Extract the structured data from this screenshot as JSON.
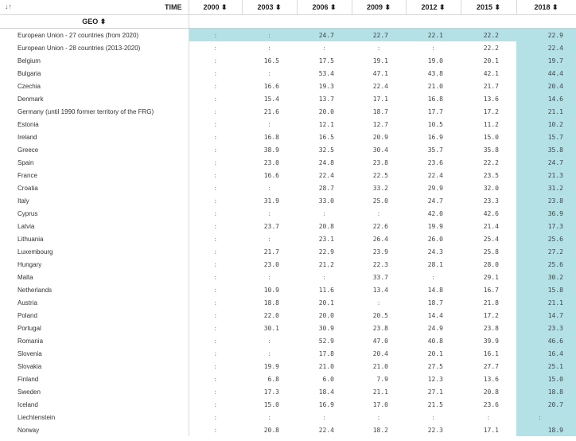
{
  "header": {
    "sort_icon": "↓↑",
    "time_label": "TIME",
    "geo_label": "GEO",
    "sort_arrows": "⬍",
    "years": [
      "2000",
      "2003",
      "2006",
      "2009",
      "2012",
      "2015",
      "2018"
    ]
  },
  "highlight_color": "#b3e1e6",
  "rows": [
    {
      "geo": "European Union - 27 countries (from 2020)",
      "values": [
        ":",
        ":",
        "24.7",
        "22.7",
        "22.1",
        "22.2",
        "22.9"
      ],
      "hl": true
    },
    {
      "geo": "European Union - 28 countries (2013-2020)",
      "values": [
        ":",
        ":",
        ":",
        ":",
        ":",
        "22.2",
        "22.4"
      ]
    },
    {
      "geo": "Belgium",
      "values": [
        ":",
        "16.5",
        "17.5",
        "19.1",
        "19.0",
        "20.1",
        "19.7"
      ]
    },
    {
      "geo": "Bulgaria",
      "values": [
        ":",
        ":",
        "53.4",
        "47.1",
        "43.8",
        "42.1",
        "44.4"
      ]
    },
    {
      "geo": "Czechia",
      "values": [
        ":",
        "16.6",
        "19.3",
        "22.4",
        "21.0",
        "21.7",
        "20.4"
      ]
    },
    {
      "geo": "Denmark",
      "values": [
        ":",
        "15.4",
        "13.7",
        "17.1",
        "16.8",
        "13.6",
        "14.6"
      ]
    },
    {
      "geo": "Germany (until 1990 former territory of the FRG)",
      "values": [
        ":",
        "21.6",
        "20.0",
        "18.7",
        "17.7",
        "17.2",
        "21.1"
      ]
    },
    {
      "geo": "Estonia",
      "values": [
        ":",
        ":",
        "12.1",
        "12.7",
        "10.5",
        "11.2",
        "10.2"
      ]
    },
    {
      "geo": "Ireland",
      "values": [
        ":",
        "16.8",
        "16.5",
        "20.9",
        "16.9",
        "15.0",
        "15.7"
      ]
    },
    {
      "geo": "Greece",
      "values": [
        ":",
        "38.9",
        "32.5",
        "30.4",
        "35.7",
        "35.8",
        "35.8"
      ]
    },
    {
      "geo": "Spain",
      "values": [
        ":",
        "23.0",
        "24.8",
        "23.8",
        "23.6",
        "22.2",
        "24.7"
      ]
    },
    {
      "geo": "France",
      "values": [
        ":",
        "16.6",
        "22.4",
        "22.5",
        "22.4",
        "23.5",
        "21.3"
      ]
    },
    {
      "geo": "Croatia",
      "values": [
        ":",
        ":",
        "28.7",
        "33.2",
        "29.9",
        "32.0",
        "31.2"
      ]
    },
    {
      "geo": "Italy",
      "values": [
        ":",
        "31.9",
        "33.0",
        "25.0",
        "24.7",
        "23.3",
        "23.8"
      ]
    },
    {
      "geo": "Cyprus",
      "values": [
        ":",
        ":",
        ":",
        ":",
        "42.0",
        "42.6",
        "36.9"
      ]
    },
    {
      "geo": "Latvia",
      "values": [
        ":",
        "23.7",
        "20.8",
        "22.6",
        "19.9",
        "21.4",
        "17.3"
      ]
    },
    {
      "geo": "Lithuania",
      "values": [
        ":",
        ":",
        "23.1",
        "26.4",
        "26.0",
        "25.4",
        "25.6"
      ]
    },
    {
      "geo": "Luxembourg",
      "values": [
        ":",
        "21.7",
        "22.9",
        "23.9",
        "24.3",
        "25.8",
        "27.2"
      ]
    },
    {
      "geo": "Hungary",
      "values": [
        ":",
        "23.0",
        "21.2",
        "22.3",
        "28.1",
        "28.0",
        "25.6"
      ]
    },
    {
      "geo": "Malta",
      "values": [
        ":",
        ":",
        ":",
        "33.7",
        ":",
        "29.1",
        "30.2"
      ]
    },
    {
      "geo": "Netherlands",
      "values": [
        ":",
        "10.9",
        "11.6",
        "13.4",
        "14.8",
        "16.7",
        "15.8"
      ]
    },
    {
      "geo": "Austria",
      "values": [
        ":",
        "18.8",
        "20.1",
        ":",
        "18.7",
        "21.8",
        "21.1"
      ]
    },
    {
      "geo": "Poland",
      "values": [
        ":",
        "22.0",
        "20.0",
        "20.5",
        "14.4",
        "17.2",
        "14.7"
      ]
    },
    {
      "geo": "Portugal",
      "values": [
        ":",
        "30.1",
        "30.9",
        "23.8",
        "24.9",
        "23.8",
        "23.3"
      ]
    },
    {
      "geo": "Romania",
      "values": [
        ":",
        ":",
        "52.9",
        "47.0",
        "40.8",
        "39.9",
        "46.6"
      ]
    },
    {
      "geo": "Slovenia",
      "values": [
        ":",
        ":",
        "17.8",
        "20.4",
        "20.1",
        "16.1",
        "16.4"
      ]
    },
    {
      "geo": "Slovakia",
      "values": [
        ":",
        "19.9",
        "21.0",
        "21.0",
        "27.5",
        "27.7",
        "25.1"
      ]
    },
    {
      "geo": "Finland",
      "values": [
        ":",
        "6.8",
        "6.0",
        "7.9",
        "12.3",
        "13.6",
        "15.0"
      ]
    },
    {
      "geo": "Sweden",
      "values": [
        ":",
        "17.3",
        "18.4",
        "21.1",
        "27.1",
        "20.8",
        "18.8"
      ]
    },
    {
      "geo": "Iceland",
      "values": [
        ":",
        "15.0",
        "16.9",
        "17.0",
        "21.5",
        "23.6",
        "20.7"
      ]
    },
    {
      "geo": "Liechtenstein",
      "values": [
        ":",
        ":",
        ":",
        ":",
        ":",
        ":",
        ":"
      ]
    },
    {
      "geo": "Norway",
      "values": [
        ":",
        "20.8",
        "22.4",
        "18.2",
        "22.3",
        "17.1",
        "18.9"
      ]
    }
  ]
}
